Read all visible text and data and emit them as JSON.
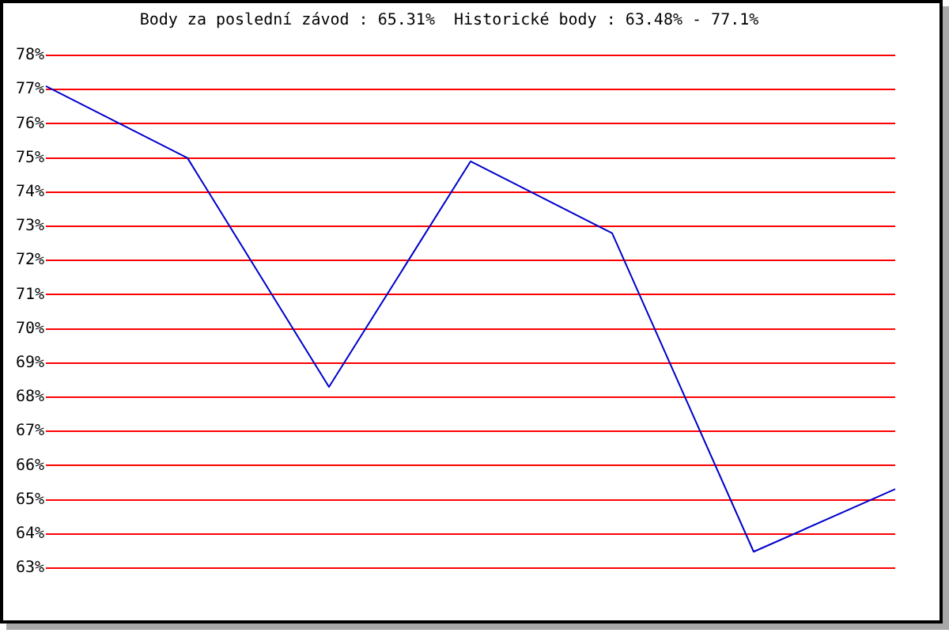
{
  "chart_data": {
    "type": "line",
    "title": "Body za poslední závod : 65.31%  Historické body : 63.48% - 77.1%",
    "categories": [
      null,
      null,
      null,
      null,
      null,
      null,
      null
    ],
    "series": [
      {
        "color": "#0000cc",
        "values": [
          77.1,
          75,
          68.3,
          74.9,
          72.8,
          63.48,
          65.31
        ]
      }
    ],
    "ylim": [
      63,
      78
    ],
    "yticks": [
      {
        "value": 63,
        "label": "63%"
      },
      {
        "value": 64,
        "label": "64%"
      },
      {
        "value": 65,
        "label": "65%"
      },
      {
        "value": 66,
        "label": "66%"
      },
      {
        "value": 67,
        "label": "67%"
      },
      {
        "value": 68,
        "label": "68%"
      },
      {
        "value": 69,
        "label": "69%"
      },
      {
        "value": 70,
        "label": "70%"
      },
      {
        "value": 71,
        "label": "71%"
      },
      {
        "value": 72,
        "label": "72%"
      },
      {
        "value": 73,
        "label": "73%"
      },
      {
        "value": 74,
        "label": "74%"
      },
      {
        "value": 75,
        "label": "75%"
      },
      {
        "value": 76,
        "label": "76%"
      },
      {
        "value": 77,
        "label": "77%"
      },
      {
        "value": 78,
        "label": "78%"
      }
    ],
    "grid": "y",
    "tick_labels": "y",
    "legend": false,
    "marker": "none",
    "line_style": "solid"
  }
}
